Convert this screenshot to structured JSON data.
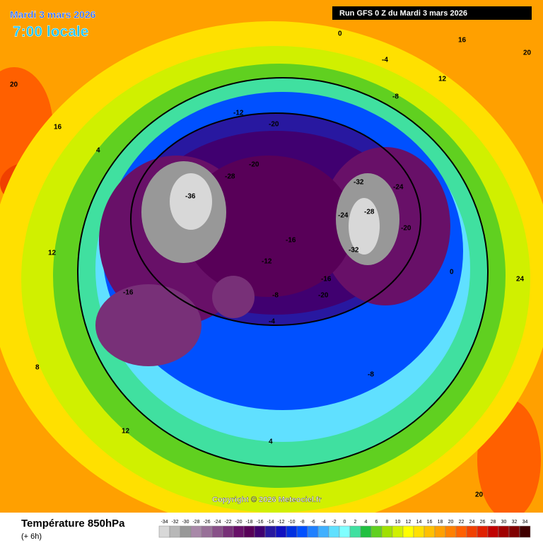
{
  "header": {
    "date": "Mardi 3 mars 2026",
    "time": "7:00 locale",
    "run": "Run GFS 0 Z du Mardi 3 mars 2026"
  },
  "map": {
    "labels": [
      -36,
      -32,
      -32,
      -28,
      -28,
      -24,
      -24,
      -20,
      -20,
      -20,
      -20,
      -16,
      -16,
      -16,
      -12,
      -12,
      -8,
      -8,
      -8,
      -4,
      -4,
      0,
      0,
      4,
      4,
      8,
      12,
      12,
      16,
      16,
      20,
      20,
      24,
      20,
      12
    ]
  },
  "copyright": "Copyright © 2026 Meteociel.fr",
  "legend": {
    "title": "Température 850hPa",
    "lead": "(+ 6h)",
    "values": [
      -34,
      -32,
      -30,
      -28,
      -26,
      -24,
      -22,
      -20,
      -18,
      -16,
      -14,
      -12,
      -10,
      -8,
      -6,
      -4,
      -2,
      0,
      2,
      4,
      6,
      8,
      10,
      12,
      14,
      16,
      18,
      20,
      22,
      24,
      26,
      28,
      30,
      32,
      34
    ],
    "colors": [
      "#d8d8d8",
      "#b8b8b8",
      "#989898",
      "#a888a8",
      "#987098",
      "#885088",
      "#783078",
      "#681068",
      "#580058",
      "#400070",
      "#2818a0",
      "#1010c0",
      "#0030e0",
      "#0050ff",
      "#2080ff",
      "#40b0ff",
      "#60e0ff",
      "#80ffff",
      "#40e0a0",
      "#20c040",
      "#60d020",
      "#a0e000",
      "#d0f000",
      "#ffff00",
      "#ffe000",
      "#ffc000",
      "#ffa000",
      "#ff8000",
      "#ff6000",
      "#f04000",
      "#e02000",
      "#c00000",
      "#a00000",
      "#800000",
      "#400000"
    ]
  }
}
